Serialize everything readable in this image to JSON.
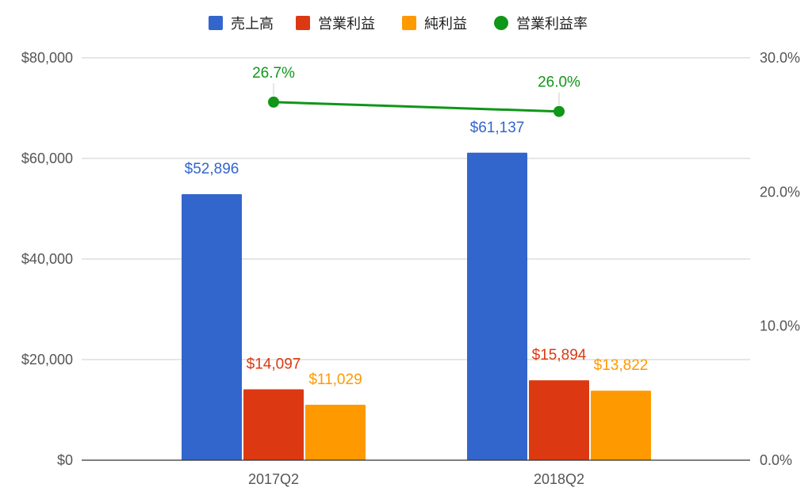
{
  "chart_data": {
    "type": "bar",
    "categories": [
      "2017Q2",
      "2018Q2"
    ],
    "series": [
      {
        "name": "売上高",
        "kind": "bar",
        "axis": "left",
        "color": "#3366cc",
        "values": [
          52896,
          61137
        ],
        "labels": [
          "$52,896",
          "$61,137"
        ]
      },
      {
        "name": "営業利益",
        "kind": "bar",
        "axis": "left",
        "color": "#dc3912",
        "values": [
          14097,
          15894
        ],
        "labels": [
          "$14,097",
          "$15,894"
        ]
      },
      {
        "name": "純利益",
        "kind": "bar",
        "axis": "left",
        "color": "#ff9900",
        "values": [
          11029,
          13822
        ],
        "labels": [
          "$11,029",
          "$13,822"
        ]
      },
      {
        "name": "営業利益率",
        "kind": "line",
        "axis": "right",
        "color": "#109618",
        "values": [
          26.7,
          26.0
        ],
        "labels": [
          "26.7%",
          "26.0%"
        ]
      }
    ],
    "y_left": {
      "min": 0,
      "max": 80000,
      "ticks": [
        0,
        20000,
        40000,
        60000,
        80000
      ],
      "tick_labels": [
        "$0",
        "$20,000",
        "$40,000",
        "$60,000",
        "$80,000"
      ]
    },
    "y_right": {
      "min": 0,
      "max": 30,
      "ticks": [
        0,
        10,
        20,
        30
      ],
      "tick_labels": [
        "0.0%",
        "10.0%",
        "20.0%",
        "30.0%"
      ]
    },
    "legend_position": "top",
    "grid": true
  }
}
